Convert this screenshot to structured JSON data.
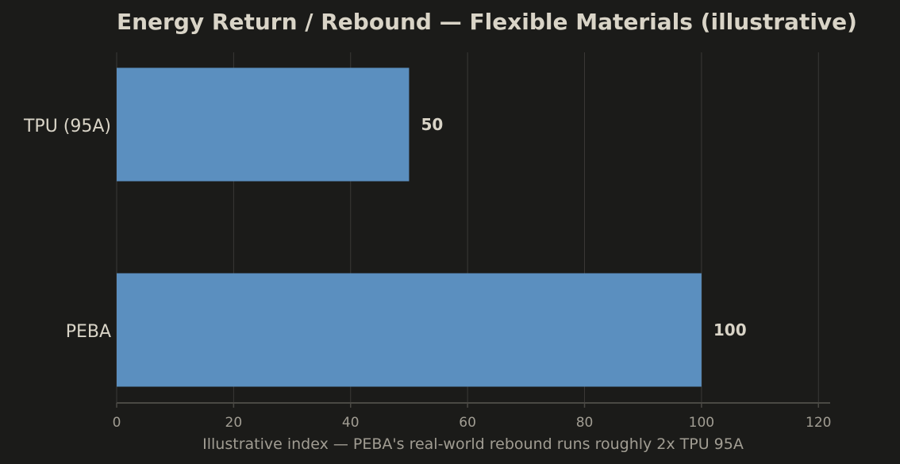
{
  "chart_data": {
    "type": "bar",
    "orientation": "horizontal",
    "title": "Energy Return / Rebound — Flexible Materials (illustrative)",
    "xlabel": "Illustrative index — PEBA's real-world rebound runs roughly 2x TPU 95A",
    "ylabel": "",
    "categories": [
      "TPU (95A)",
      "PEBA"
    ],
    "values": [
      50,
      100
    ],
    "value_labels": [
      "50",
      "100"
    ],
    "xlim": [
      0,
      122
    ],
    "xticks": [
      0,
      20,
      40,
      60,
      80,
      100,
      120
    ],
    "xtick_labels": [
      "0",
      "20",
      "40",
      "60",
      "80",
      "100",
      "120"
    ],
    "grid": "vertical",
    "legend": "none",
    "colors": {
      "background": "#1b1b19",
      "bar": "#5b8fbf",
      "grid": "#3a3936",
      "axis": "#4a4944",
      "text": "#d9d4c7",
      "muted_text": "#a19d93"
    }
  }
}
